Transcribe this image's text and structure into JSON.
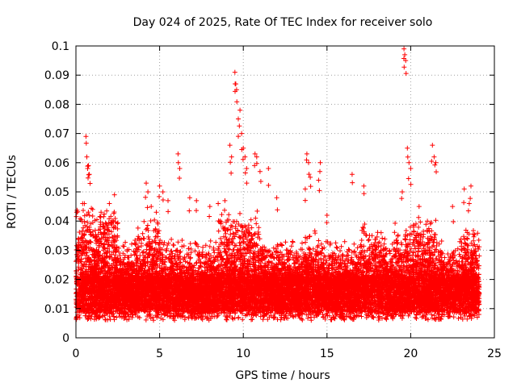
{
  "chart_data": {
    "type": "scatter",
    "title": "Day 024 of 2025, Rate Of TEC Index for receiver solo",
    "xlabel": "GPS time / hours",
    "ylabel": "ROTI / TECUs",
    "xlim": [
      0,
      25
    ],
    "ylim": [
      0,
      0.1
    ],
    "x_ticks": [
      "0",
      "5",
      "10",
      "15",
      "20",
      "25"
    ],
    "y_ticks": [
      "0",
      "0.01",
      "0.02",
      "0.03",
      "0.04",
      "0.05",
      "0.06",
      "0.07",
      "0.08",
      "0.09",
      "0.1"
    ],
    "grid": true,
    "marker": "+",
    "color": "#ff0000",
    "series": [
      {
        "name": "ROTI",
        "description": "dense band of points 0-24 h, values mostly 0.005-0.03 TECU/min with spikes",
        "points": [
          [
            0.6,
            0.069
          ],
          [
            0.65,
            0.062
          ],
          [
            0.7,
            0.058
          ],
          [
            0.75,
            0.059
          ],
          [
            0.8,
            0.056
          ],
          [
            0.4,
            0.046
          ],
          [
            0.5,
            0.046
          ],
          [
            1.0,
            0.044
          ],
          [
            1.5,
            0.043
          ],
          [
            2.0,
            0.046
          ],
          [
            2.3,
            0.049
          ],
          [
            4.2,
            0.053
          ],
          [
            4.3,
            0.05
          ],
          [
            4.5,
            0.045
          ],
          [
            4.8,
            0.043
          ],
          [
            5.0,
            0.052
          ],
          [
            5.2,
            0.05
          ],
          [
            5.5,
            0.047
          ],
          [
            6.1,
            0.063
          ],
          [
            6.2,
            0.058
          ],
          [
            6.8,
            0.048
          ],
          [
            7.2,
            0.047
          ],
          [
            8.0,
            0.045
          ],
          [
            8.5,
            0.046
          ],
          [
            8.9,
            0.047
          ],
          [
            9.2,
            0.066
          ],
          [
            9.3,
            0.062
          ],
          [
            9.5,
            0.091
          ],
          [
            9.55,
            0.087
          ],
          [
            9.6,
            0.085
          ],
          [
            9.7,
            0.075
          ],
          [
            9.8,
            0.078
          ],
          [
            9.9,
            0.07
          ],
          [
            10.0,
            0.065
          ],
          [
            10.1,
            0.062
          ],
          [
            10.2,
            0.058
          ],
          [
            10.7,
            0.063
          ],
          [
            10.8,
            0.062
          ],
          [
            11.0,
            0.057
          ],
          [
            11.5,
            0.058
          ],
          [
            12.0,
            0.048
          ],
          [
            13.8,
            0.063
          ],
          [
            13.9,
            0.06
          ],
          [
            14.0,
            0.055
          ],
          [
            13.7,
            0.051
          ],
          [
            14.5,
            0.054
          ],
          [
            14.6,
            0.06
          ],
          [
            15.0,
            0.042
          ],
          [
            16.5,
            0.056
          ],
          [
            17.2,
            0.052
          ],
          [
            19.6,
            0.099
          ],
          [
            19.65,
            0.097
          ],
          [
            19.7,
            0.095
          ],
          [
            19.8,
            0.065
          ],
          [
            19.9,
            0.06
          ],
          [
            20.0,
            0.058
          ],
          [
            19.5,
            0.05
          ],
          [
            20.5,
            0.045
          ],
          [
            21.0,
            0.04
          ],
          [
            21.3,
            0.066
          ],
          [
            21.4,
            0.062
          ],
          [
            21.5,
            0.06
          ],
          [
            22.5,
            0.045
          ],
          [
            23.2,
            0.051
          ],
          [
            23.6,
            0.052
          ],
          [
            23.5,
            0.046
          ]
        ]
      }
    ]
  }
}
